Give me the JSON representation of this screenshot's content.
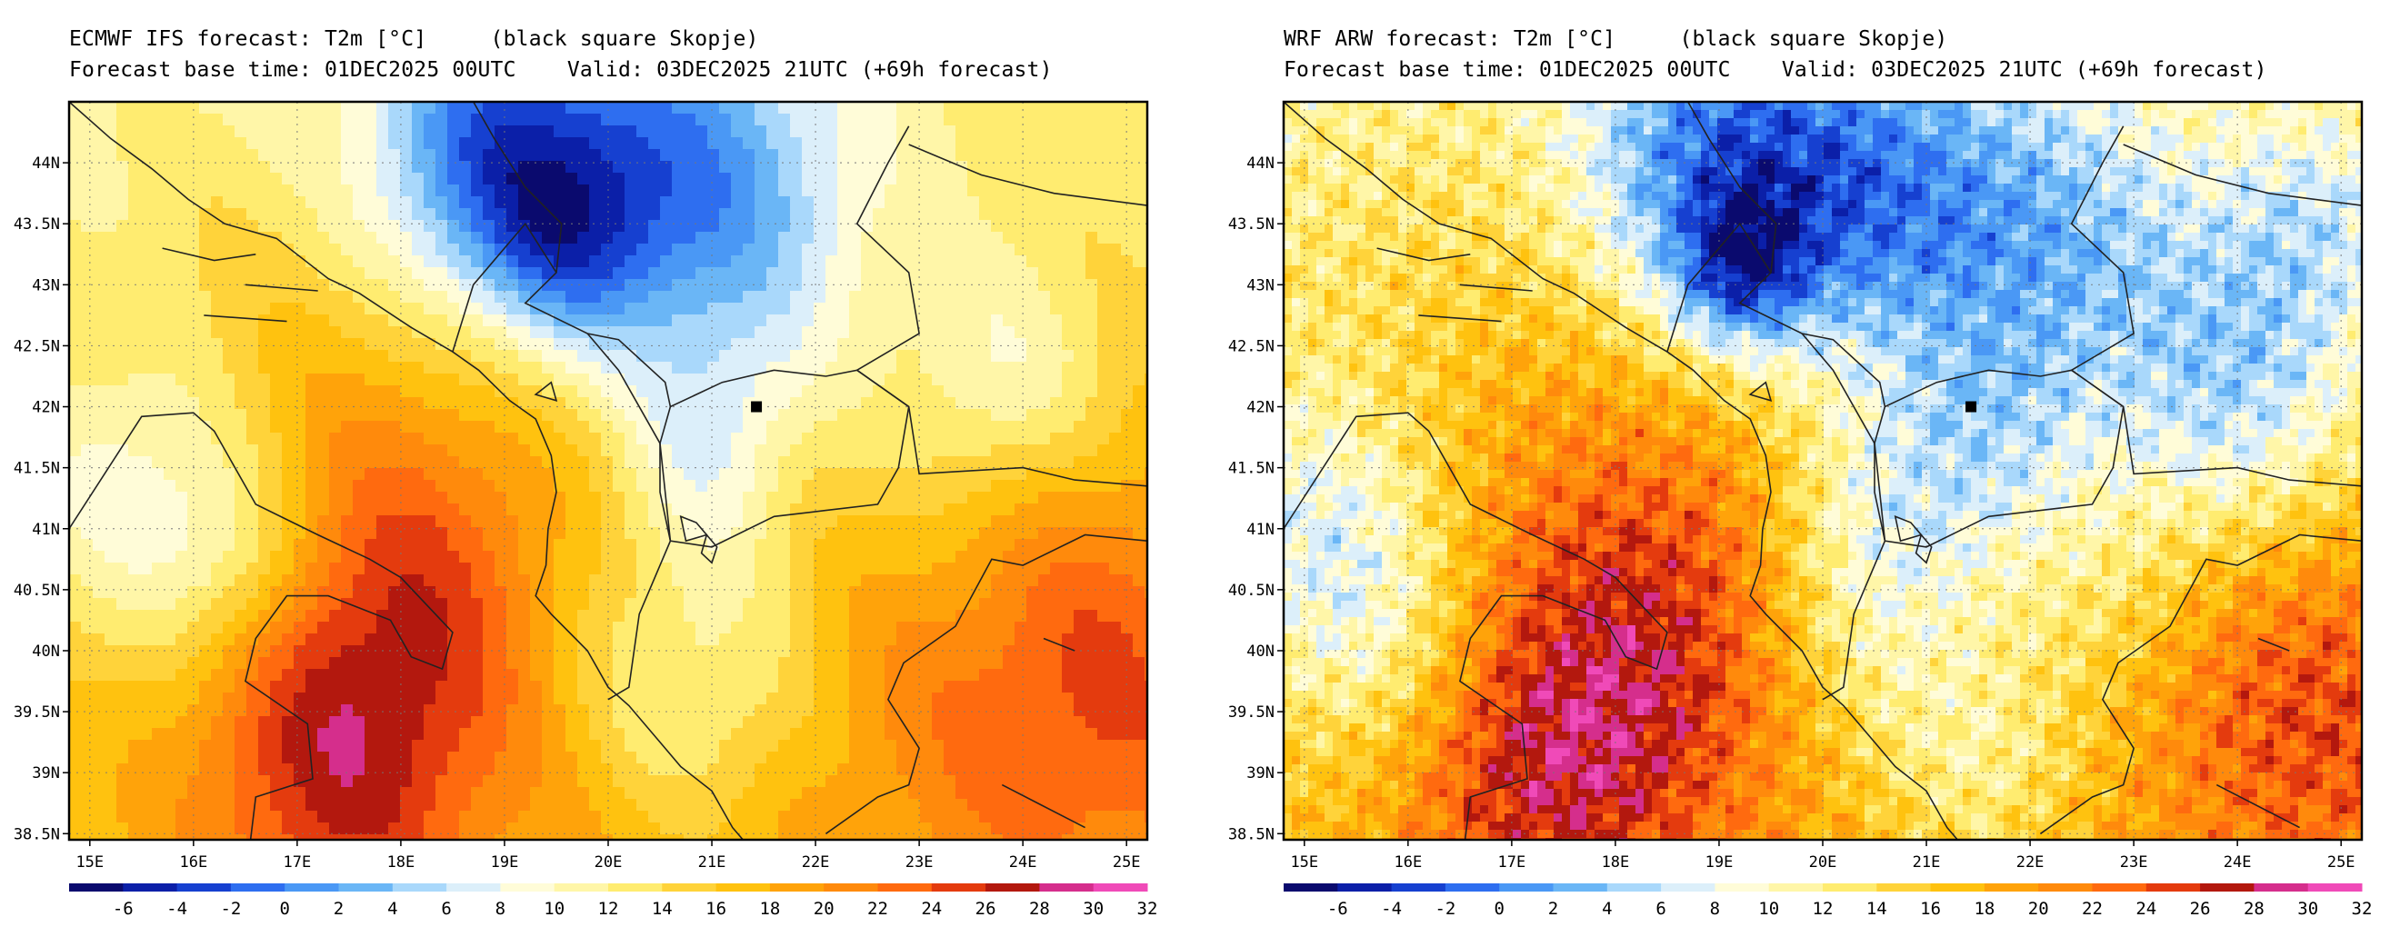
{
  "panels": [
    {
      "id": "left",
      "title_line1": "ECMWF IFS forecast: T2m [°C]     (black square Skopje)",
      "title_line2": "Forecast base time: 01DEC2025 00UTC    Valid: 03DEC2025 21UTC (+69h forecast)",
      "style": "smooth"
    },
    {
      "id": "right",
      "title_line1": "WRF ARW forecast: T2m [°C]     (black square Skopje)",
      "title_line2": "Forecast base time: 01DEC2025 00UTC    Valid: 03DEC2025 21UTC (+69h forecast)",
      "style": "noisy"
    }
  ],
  "map": {
    "lon_range": [
      14.8,
      25.2
    ],
    "lat_range": [
      38.45,
      44.5
    ],
    "lon_ticks": [
      "15E",
      "16E",
      "17E",
      "18E",
      "19E",
      "20E",
      "21E",
      "22E",
      "23E",
      "24E",
      "25E"
    ],
    "lon_tick_values": [
      15,
      16,
      17,
      18,
      19,
      20,
      21,
      22,
      23,
      24,
      25
    ],
    "lat_ticks": [
      "38.5N",
      "39N",
      "39.5N",
      "40N",
      "40.5N",
      "41N",
      "41.5N",
      "42N",
      "42.5N",
      "43N",
      "43.5N",
      "44N"
    ],
    "lat_tick_values": [
      38.5,
      39,
      39.5,
      40,
      40.5,
      41,
      41.5,
      42,
      42.5,
      43,
      43.5,
      44
    ],
    "grid": "dotted every 1 degree",
    "marker": {
      "name": "Skopje",
      "lon": 21.43,
      "lat": 42.0,
      "symbol": "black square"
    }
  },
  "colorbar": {
    "labels": [
      "-6",
      "-4",
      "-2",
      "0",
      "2",
      "4",
      "6",
      "8",
      "10",
      "12",
      "14",
      "16",
      "18",
      "20",
      "22",
      "24",
      "26",
      "28",
      "30",
      "32"
    ],
    "colors": [
      "#0a0a6e",
      "#0b1fa8",
      "#1640d0",
      "#2e6ef0",
      "#4a98f5",
      "#6ab6f6",
      "#a9d8fb",
      "#dceffa",
      "#fffcd8",
      "#fff6a8",
      "#ffec70",
      "#ffd33a",
      "#ffc20f",
      "#ffa30a",
      "#ff8a0c",
      "#ff6a0f",
      "#e43b0e",
      "#b3180e",
      "#d52e8c",
      "#f04ab8"
    ]
  }
}
